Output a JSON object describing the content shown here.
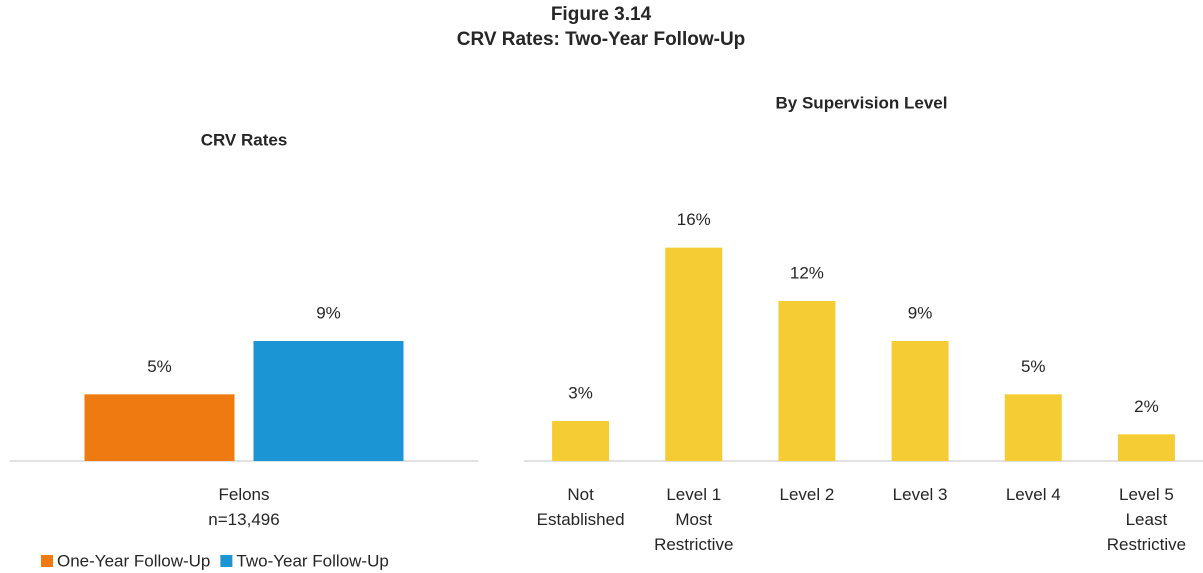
{
  "figure": {
    "number": "Figure 3.14",
    "title": "CRV Rates: Two-Year Follow-Up"
  },
  "chart_data": [
    {
      "type": "bar",
      "title": "CRV Rates",
      "categories": [
        "Felons\nn=13,496"
      ],
      "series": [
        {
          "name": "One-Year Follow-Up",
          "color": "#f07a12",
          "values": [
            5
          ],
          "value_labels": [
            "5%"
          ]
        },
        {
          "name": "Two-Year Follow-Up",
          "color": "#1b95d4",
          "values": [
            9
          ],
          "value_labels": [
            "9%"
          ]
        }
      ],
      "ylim": [
        0,
        18
      ],
      "legend": "bottom"
    },
    {
      "type": "bar",
      "title": "By Supervision Level",
      "categories": [
        "Not\nEstablished",
        "Level 1\nMost\nRestrictive",
        "Level 2",
        "Level 3",
        "Level 4",
        "Level 5\nLeast\nRestrictive"
      ],
      "values": [
        3,
        16,
        12,
        9,
        5,
        2
      ],
      "value_labels": [
        "3%",
        "16%",
        "12%",
        "9%",
        "5%",
        "2%"
      ],
      "color": "#f5cc33",
      "ylim": [
        0,
        18
      ]
    }
  ]
}
